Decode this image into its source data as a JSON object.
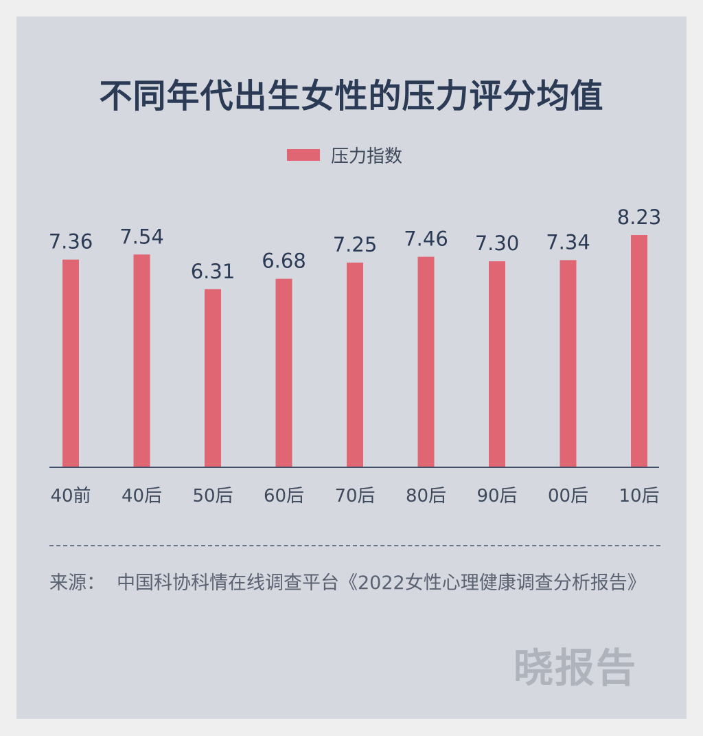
{
  "title": "不同年代出生女性的压力评分均值",
  "legend": {
    "label": "压力指数"
  },
  "colors": {
    "bar": "#e06674",
    "axis": "#3d4f66",
    "value_text": "#2b3a55",
    "tick_text": "#3e4a5c",
    "background": "#d5d8de"
  },
  "chart_data": {
    "type": "bar",
    "categories": [
      "40前",
      "40后",
      "50后",
      "60后",
      "70后",
      "80后",
      "90后",
      "00后",
      "10后"
    ],
    "series": [
      {
        "name": "压力指数",
        "values": [
          7.36,
          7.54,
          6.31,
          6.68,
          7.25,
          7.46,
          7.3,
          7.34,
          8.23
        ]
      }
    ],
    "value_labels": [
      "7.36",
      "7.54",
      "6.31",
      "6.68",
      "7.25",
      "7.46",
      "7.30",
      "7.34",
      "8.23"
    ],
    "ylim": [
      0,
      9.1
    ],
    "grid": false,
    "legend_position": "top-center"
  },
  "source": {
    "label": "来源：",
    "text": "中国科协科情在线调查平台《2022女性心理健康调查分析报告》"
  },
  "watermark": "晓报告"
}
